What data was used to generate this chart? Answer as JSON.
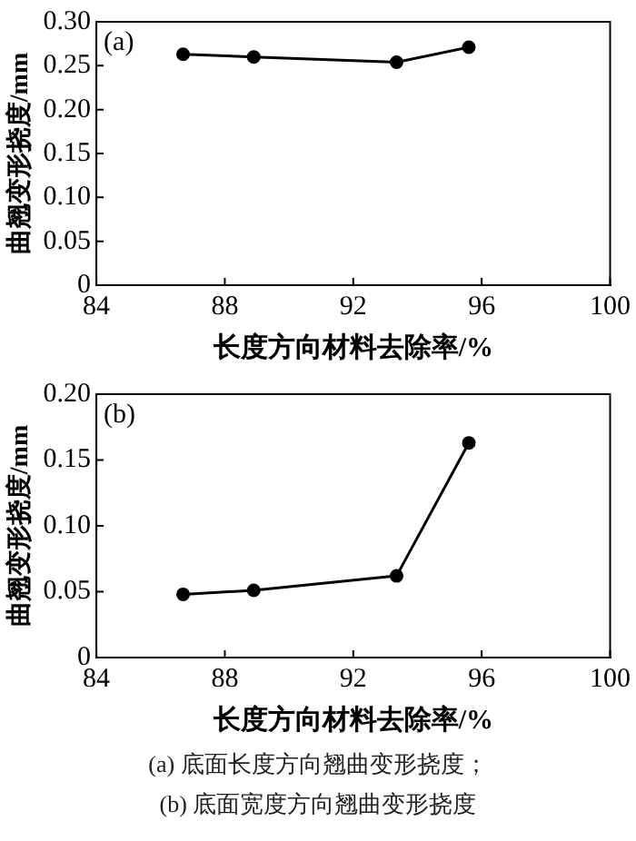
{
  "chart_data": [
    {
      "type": "line",
      "title": "(a)",
      "xlabel": "长度方向材料去除率/%",
      "ylabel": "曲翘变形挠度/mm",
      "x": [
        86.7,
        88.9,
        93.35,
        95.6
      ],
      "series": [
        {
          "color": "#000000",
          "values": [
            0.263,
            0.26,
            0.254,
            0.271
          ]
        }
      ],
      "xlim": [
        84,
        100
      ],
      "xticks": [
        84,
        88,
        92,
        96,
        100
      ],
      "ylim": [
        0,
        0.3
      ],
      "yticks": [
        0,
        0.05,
        {
          "value": 0.1,
          "label": "0.10"
        },
        0.15,
        {
          "value": 0.2,
          "label": "0.20"
        },
        0.25,
        {
          "value": 0.3,
          "label": "0.30"
        }
      ],
      "grid": false,
      "legend": false,
      "marker": "circle",
      "line_style": "solid"
    },
    {
      "type": "line",
      "title": "(b)",
      "xlabel": "长度方向材料去除率/%",
      "ylabel": "曲翘变形挠度/mm",
      "x": [
        86.7,
        88.9,
        93.35,
        95.6
      ],
      "series": [
        {
          "color": "#000000",
          "values": [
            0.048,
            0.051,
            0.062,
            0.163
          ]
        }
      ],
      "xlim": [
        84,
        100
      ],
      "xticks": [
        84,
        88,
        92,
        96,
        100
      ],
      "ylim": [
        0,
        0.2
      ],
      "yticks": [
        0,
        0.05,
        {
          "value": 0.1,
          "label": "0.10"
        },
        0.15,
        {
          "value": 0.2,
          "label": "0.20"
        }
      ],
      "grid": false,
      "legend": false,
      "marker": "circle",
      "line_style": "solid",
      "annotations": [
        "(a)  底面长度方向翘曲变形挠度；",
        "(b)  底面宽度方向翘曲变形挠度"
      ]
    }
  ]
}
